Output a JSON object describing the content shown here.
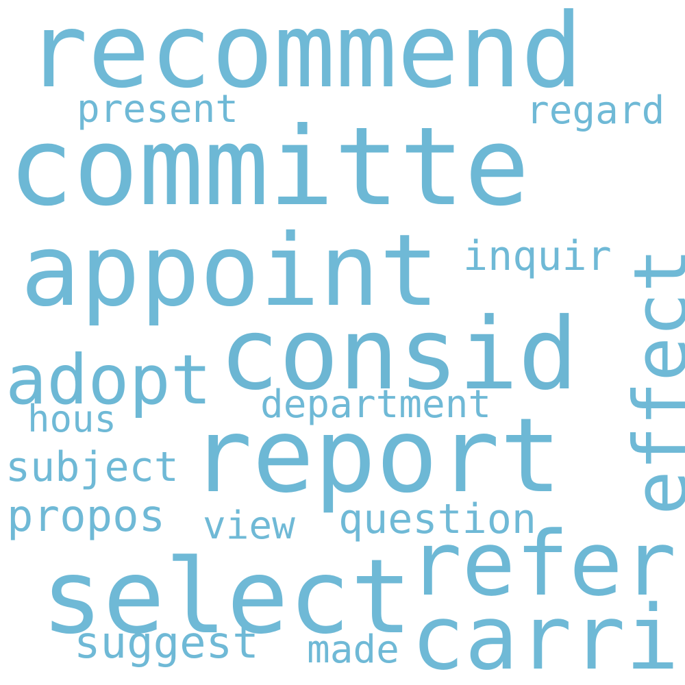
{
  "words": {
    "recommend": "recommend",
    "committe": "committe",
    "appoint": "appoint",
    "consid": "consid",
    "report": "report",
    "select": "select",
    "refer": "refer",
    "carri": "carri",
    "adopt": "adopt",
    "effect": "effect",
    "present": "present",
    "regard": "regard",
    "inquir": "inquir",
    "department": "department",
    "hous": "hous",
    "subject": "subject",
    "propos": "propos",
    "view": "view",
    "question": "question",
    "suggest": "suggest",
    "made": "made"
  },
  "colors": {
    "background": "#ffffff",
    "word": "#6fb9d6"
  }
}
